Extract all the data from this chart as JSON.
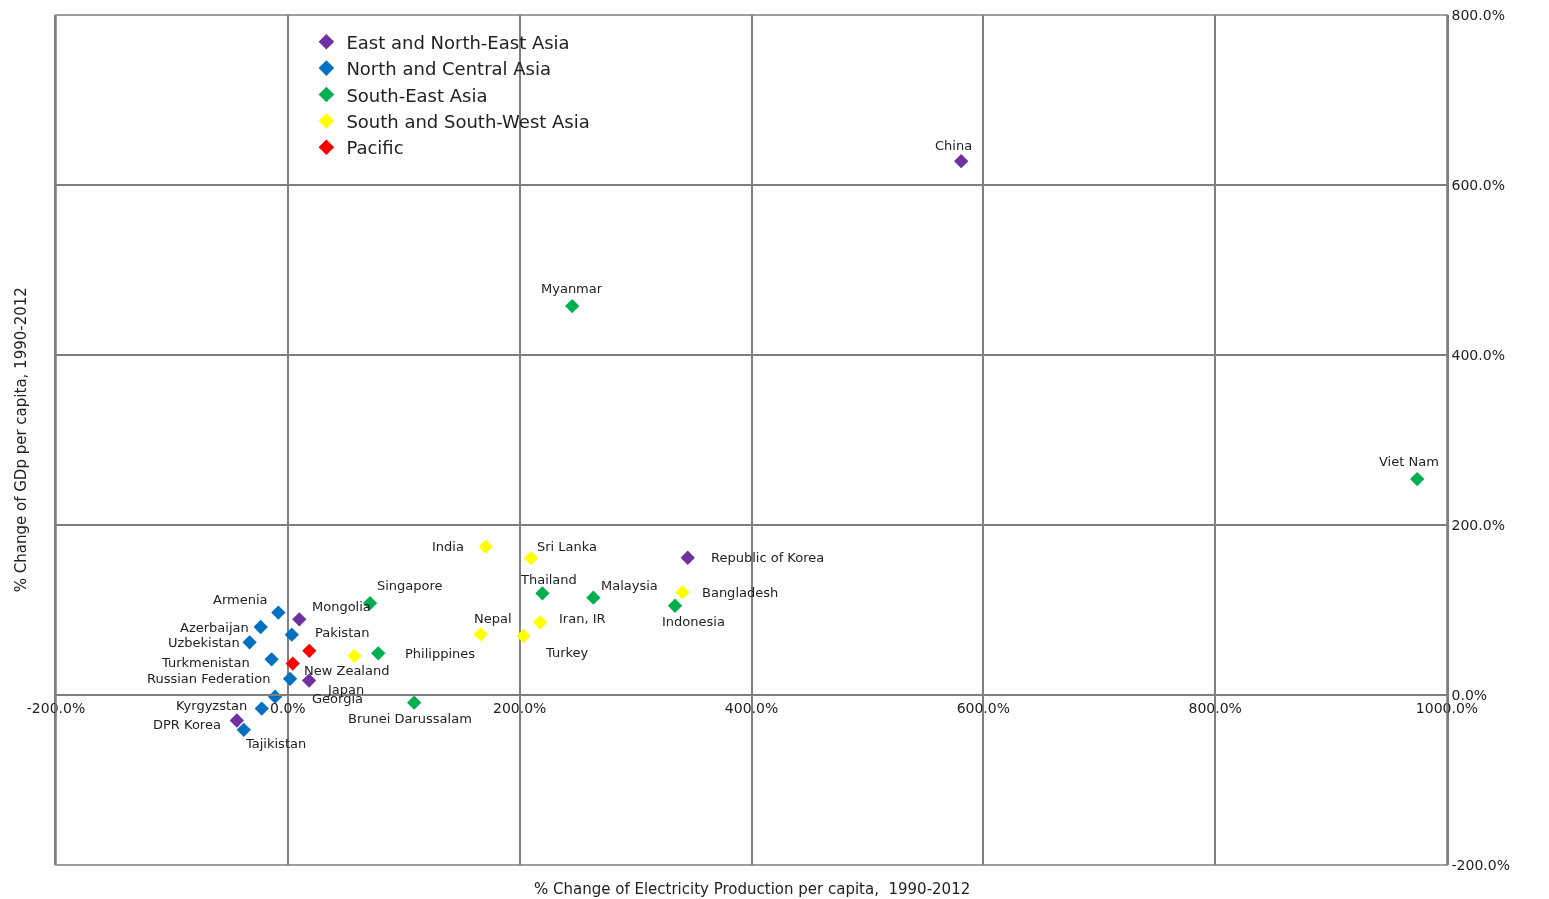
{
  "chart_data": {
    "type": "scatter",
    "xlabel": "% Change of Electricity Production per capita,  1990-2012",
    "ylabel": "% Change of GDp per capita, 1990-2012",
    "xlim": [
      -200,
      1000
    ],
    "ylim": [
      -200,
      800
    ],
    "xticks": [
      {
        "value": -200,
        "label": "-200.0%"
      },
      {
        "value": 0,
        "label": "0.0%"
      },
      {
        "value": 200,
        "label": "200.0%"
      },
      {
        "value": 400,
        "label": "400.0%"
      },
      {
        "value": 600,
        "label": "600.0%"
      },
      {
        "value": 800,
        "label": "800.0%"
      },
      {
        "value": 1000,
        "label": "1000.0%"
      }
    ],
    "yticks": [
      {
        "value": -200,
        "label": "-200.0%"
      },
      {
        "value": 0,
        "label": "0.0%"
      },
      {
        "value": 200,
        "label": "200.0%"
      },
      {
        "value": 400,
        "label": "400.0%"
      },
      {
        "value": 600,
        "label": "600.0%"
      },
      {
        "value": 800,
        "label": "800.0%"
      }
    ],
    "grid": true,
    "legend": "top left",
    "marker": "diamond",
    "series": [
      {
        "name": "East and North-East Asia",
        "color": "#7030a0",
        "x": [
          580.9,
          9.9,
          18.3,
          345,
          -44
        ],
        "values": [
          628,
          89,
          17,
          161.5,
          -30
        ]
      },
      {
        "name": "North and Central Asia",
        "color": "#0070c0",
        "x": [
          -8.2,
          -23.4,
          3.4,
          -33,
          -14,
          1.9,
          -11,
          -22.5,
          -38
        ],
        "values": [
          97,
          80,
          71,
          62,
          42,
          19,
          -2,
          -16,
          -41
        ]
      },
      {
        "name": "South-East Asia",
        "color": "#00b050",
        "x": [
          245.3,
          974.3,
          70.9,
          78,
          109,
          219.6,
          263.6,
          334
        ],
        "values": [
          457.6,
          254,
          108,
          49,
          -9,
          119.6,
          114.5,
          105
        ]
      },
      {
        "name": "South and South-West Asia",
        "color": "#ffff00",
        "x": [
          170.7,
          209.8,
          340.4,
          166.4,
          217.6,
          203.2,
          57.4
        ],
        "values": [
          174.5,
          161,
          120.8,
          71.4,
          85.5,
          69.4,
          46
        ]
      },
      {
        "name": "Pacific",
        "color": "#ff0000",
        "x": [
          18.5,
          4.2
        ],
        "values": [
          52,
          37
        ]
      }
    ],
    "annotations": [
      {
        "text": "China",
        "x": 580.9,
        "y": 628
      },
      {
        "text": "Myanmar",
        "x": 245.3,
        "y": 457.6
      },
      {
        "text": "Viet Nam",
        "x": 974.3,
        "y": 254
      },
      {
        "text": "India",
        "x": 170.7,
        "y": 174.5
      },
      {
        "text": "Sri Lanka",
        "x": 209.8,
        "y": 161
      },
      {
        "text": "Republic of Korea",
        "x": 345,
        "y": 161.5
      },
      {
        "text": "Thailand",
        "x": 219.6,
        "y": 119.6
      },
      {
        "text": "Malaysia",
        "x": 263.6,
        "y": 114.5
      },
      {
        "text": "Bangladesh",
        "x": 340.4,
        "y": 120.8
      },
      {
        "text": "Indonesia",
        "x": 334,
        "y": 105
      },
      {
        "text": "Nepal",
        "x": 166.4,
        "y": 71.4
      },
      {
        "text": "Iran, IR",
        "x": 217.6,
        "y": 85.5
      },
      {
        "text": "Turkey",
        "x": 203.2,
        "y": 69.4
      },
      {
        "text": "Singapore",
        "x": 70.9,
        "y": 108
      },
      {
        "text": "Philippines",
        "x": 78,
        "y": 49
      },
      {
        "text": "Brunei Darussalam",
        "x": 109,
        "y": -9
      },
      {
        "text": "Armenia",
        "x": -8.2,
        "y": 97
      },
      {
        "text": "Mongolia",
        "x": 9.9,
        "y": 89
      },
      {
        "text": "Azerbaijan",
        "x": -23.4,
        "y": 80
      },
      {
        "text": "Pakistan",
        "x": 3.4,
        "y": 71
      },
      {
        "text": "Uzbekistan",
        "x": -33,
        "y": 62
      },
      {
        "text": "Turkmenistan",
        "x": -14,
        "y": 42
      },
      {
        "text": "New Zealand",
        "x": 4.2,
        "y": 37
      },
      {
        "text": "Russian Federation",
        "x": 1.9,
        "y": 19
      },
      {
        "text": "Japan",
        "x": 18.3,
        "y": 17
      },
      {
        "text": "Georgia",
        "x": -11,
        "y": -2
      },
      {
        "text": "Kyrgyzstan",
        "x": -22.5,
        "y": -16
      },
      {
        "text": "DPR Korea",
        "x": -44,
        "y": -30
      },
      {
        "text": "Tajikistan",
        "x": -38,
        "y": -41
      }
    ]
  }
}
